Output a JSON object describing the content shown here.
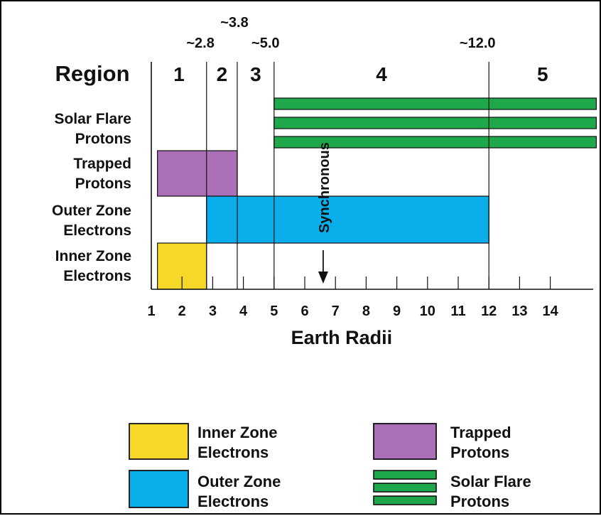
{
  "chart_data": {
    "type": "range_bar",
    "xlabel": "Earth Radii",
    "x_ticks": [
      "1",
      "2",
      "3",
      "4",
      "5",
      "6",
      "7",
      "8",
      "9",
      "10",
      "11",
      "12",
      "13",
      "14"
    ],
    "x_tick_values": [
      1,
      2,
      3,
      4,
      5,
      6,
      7,
      8,
      9,
      10,
      11,
      12,
      13,
      14
    ],
    "xlim": [
      1,
      15.5
    ],
    "region_header": "Region",
    "regions": [
      {
        "label": "1",
        "from": 1,
        "to": 2.8
      },
      {
        "label": "2",
        "from": 2.8,
        "to": 3.8
      },
      {
        "label": "3",
        "from": 3.8,
        "to": 5.0
      },
      {
        "label": "4",
        "from": 5.0,
        "to": 12.0
      },
      {
        "label": "5",
        "from": 12.0,
        "to": 15.5
      }
    ],
    "boundaries": [
      {
        "label": "~2.8",
        "value": 2.8
      },
      {
        "label": "~3.8",
        "value": 3.8
      },
      {
        "label": "~5.0",
        "value": 5.0
      },
      {
        "label": "~12.0",
        "value": 12.0
      }
    ],
    "rows": [
      {
        "key": "solar",
        "label": [
          "Solar Flare",
          "Protons"
        ],
        "from": 5.0,
        "to": 15.5,
        "color": "#1fa84a",
        "pattern": "stripes"
      },
      {
        "key": "trapped",
        "label": [
          "Trapped",
          "Protons"
        ],
        "from": 1.2,
        "to": 3.8,
        "color": "#ab6fb8",
        "pattern": "solid"
      },
      {
        "key": "outer",
        "label": [
          "Outer Zone",
          "Electrons"
        ],
        "from": 2.8,
        "to": 12.0,
        "color": "#0aaeea",
        "pattern": "solid"
      },
      {
        "key": "inner",
        "label": [
          "Inner Zone",
          "Electrons"
        ],
        "from": 1.2,
        "to": 2.8,
        "color": "#f6d928",
        "pattern": "solid"
      }
    ],
    "annotation": {
      "label": "Synchronous",
      "value": 6.6
    }
  },
  "legend": {
    "items": [
      {
        "key": "inner",
        "label": [
          "Inner Zone",
          "Electrons"
        ],
        "color": "#f6d928",
        "pattern": "solid"
      },
      {
        "key": "trapped",
        "label": [
          "Trapped",
          "Protons"
        ],
        "color": "#ab6fb8",
        "pattern": "solid"
      },
      {
        "key": "outer",
        "label": [
          "Outer Zone",
          "Electrons"
        ],
        "color": "#0aaeea",
        "pattern": "solid"
      },
      {
        "key": "solar",
        "label": [
          "Solar Flare",
          "Protons"
        ],
        "color": "#1fa84a",
        "pattern": "stripes"
      }
    ]
  }
}
